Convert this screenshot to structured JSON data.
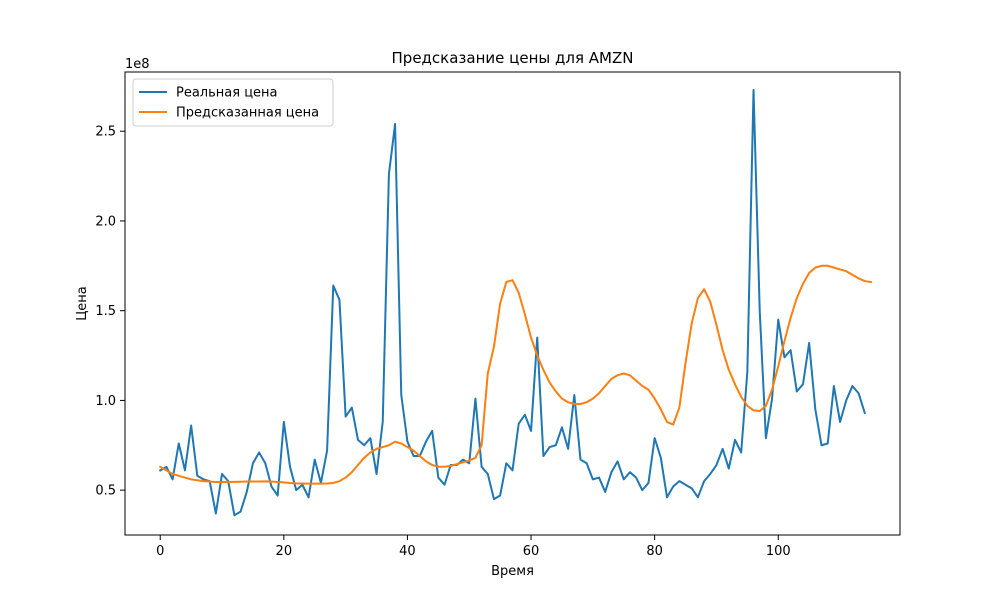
{
  "chart_data": {
    "type": "line",
    "title": "Предсказание цены для AMZN",
    "xlabel": "Время",
    "ylabel": "Цена",
    "y_offset_label": "1e8",
    "y_scale_factor": 100000000,
    "xlim": [
      -5.7,
      119.7
    ],
    "ylim": [
      25000000,
      283000000
    ],
    "x_ticks": [
      0,
      20,
      40,
      60,
      80,
      100
    ],
    "y_ticks": [
      50000000,
      100000000,
      150000000,
      200000000,
      250000000
    ],
    "y_tick_labels": [
      "0.5",
      "1.0",
      "1.5",
      "2.0",
      "2.5"
    ],
    "grid": false,
    "legend_position": "top-left",
    "series": [
      {
        "name": "Реальная цена",
        "color": "#1f77b4",
        "values": [
          61000000,
          63000000,
          56000000,
          76000000,
          61000000,
          86000000,
          58000000,
          56000000,
          55000000,
          37000000,
          59000000,
          55000000,
          36000000,
          38000000,
          49000000,
          65000000,
          71000000,
          65000000,
          52000000,
          47000000,
          88000000,
          63000000,
          50000000,
          53000000,
          46000000,
          67000000,
          54000000,
          72000000,
          164000000,
          156000000,
          91000000,
          96000000,
          78000000,
          75000000,
          79000000,
          59000000,
          88000000,
          226000000,
          254000000,
          103000000,
          77000000,
          69000000,
          69000000,
          77000000,
          83000000,
          57000000,
          53000000,
          64000000,
          64000000,
          67000000,
          65000000,
          101000000,
          63000000,
          59000000,
          45000000,
          47000000,
          65000000,
          61000000,
          87000000,
          92000000,
          83000000,
          135000000,
          69000000,
          74000000,
          75000000,
          85000000,
          73000000,
          103000000,
          67000000,
          65000000,
          56000000,
          57000000,
          49000000,
          60000000,
          66000000,
          56000000,
          60000000,
          57000000,
          50000000,
          54000000,
          79000000,
          68000000,
          46000000,
          52000000,
          55000000,
          53000000,
          51000000,
          46000000,
          55000000,
          59000000,
          64000000,
          73000000,
          62000000,
          78000000,
          71000000,
          116000000,
          273000000,
          150000000,
          79000000,
          101000000,
          145000000,
          124000000,
          128000000,
          105000000,
          109000000,
          132000000,
          95000000,
          75000000,
          76000000,
          108000000,
          88000000,
          100000000,
          108000000,
          104000000,
          93000000
        ]
      },
      {
        "name": "Предсказанная цена",
        "color": "#ff7f0e",
        "values": [
          63000000,
          61000000,
          59000000,
          58000000,
          57000000,
          56000000,
          55500000,
          55000000,
          54800000,
          54500000,
          54500000,
          54500000,
          54600000,
          54700000,
          54800000,
          54800000,
          54800000,
          54900000,
          54800000,
          54500000,
          54300000,
          54000000,
          53800000,
          53700000,
          53600000,
          53600000,
          53600000,
          53700000,
          54000000,
          55000000,
          57000000,
          60000000,
          64000000,
          68000000,
          71000000,
          73000000,
          74000000,
          75000000,
          77000000,
          76000000,
          74000000,
          72000000,
          69000000,
          66000000,
          64000000,
          63000000,
          63000000,
          63500000,
          64500000,
          65500000,
          66500000,
          68000000,
          75000000,
          115000000,
          130000000,
          154000000,
          166000000,
          167000000,
          160000000,
          148000000,
          135000000,
          125000000,
          117000000,
          110000000,
          105000000,
          101000000,
          99000000,
          98000000,
          98000000,
          99000000,
          101000000,
          104000000,
          108000000,
          112000000,
          114000000,
          115000000,
          114000000,
          111000000,
          108000000,
          106000000,
          101000000,
          95000000,
          88000000,
          86500000,
          96000000,
          121000000,
          143000000,
          157000000,
          162000000,
          155000000,
          142000000,
          128000000,
          117000000,
          109000000,
          102000000,
          97000000,
          94500000,
          94000000,
          97000000,
          106000000,
          119000000,
          133000000,
          146000000,
          157000000,
          165000000,
          171000000,
          174000000,
          175000000,
          175000000,
          174000000,
          173000000,
          172000000,
          170000000,
          168000000,
          166500000,
          166000000
        ]
      }
    ]
  }
}
